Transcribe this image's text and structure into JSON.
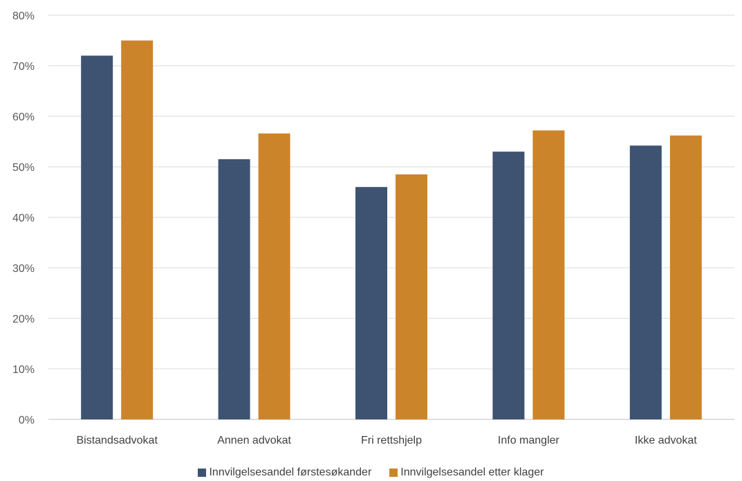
{
  "chart_data": {
    "type": "bar",
    "categories": [
      "Bistandsadvokat",
      "Annen advokat",
      "Fri rettshjelp",
      "Info mangler",
      "Ikke advokat"
    ],
    "series": [
      {
        "name": "Innvilgelsesandel førstesøkander",
        "color": "#3e5372",
        "values": [
          72,
          51.5,
          46,
          53,
          54.2
        ]
      },
      {
        "name": "Innvilgelsesandel etter klager",
        "color": "#cc842b",
        "values": [
          75,
          56.6,
          48.5,
          57.2,
          56.2
        ]
      }
    ],
    "ylim": [
      0,
      80
    ],
    "yticks": [
      "0%",
      "10%",
      "20%",
      "30%",
      "40%",
      "50%",
      "60%",
      "70%",
      "80%"
    ],
    "grid": true,
    "legend_position": "bottom"
  }
}
